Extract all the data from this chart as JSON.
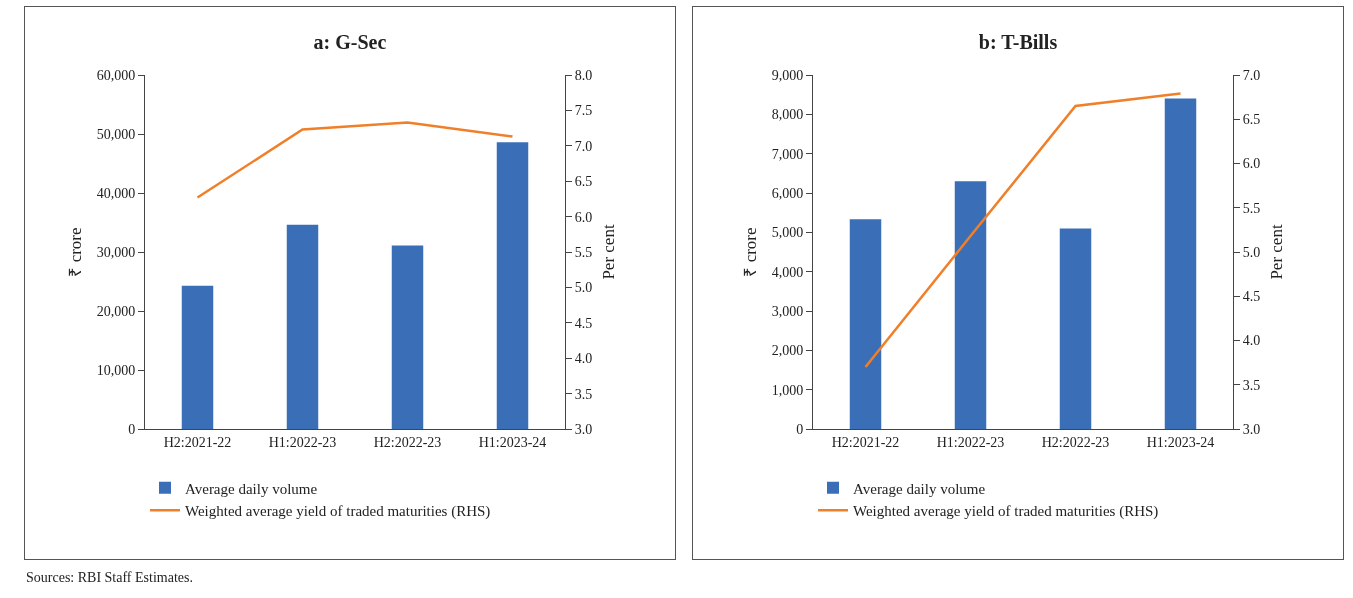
{
  "chart_data": [
    {
      "type": "bar",
      "title": "a: G-Sec",
      "ylabel": "₹ crore",
      "y2label": "Per cent",
      "categories": [
        "H2:2021-22",
        "H1:2022-23",
        "H2:2022-23",
        "H1:2023-24"
      ],
      "series": [
        {
          "name": "Average daily volume",
          "color": "#3a6fb7",
          "values": [
            24300,
            34600,
            31100,
            48600
          ]
        },
        {
          "name": "Weighted average yield of traded maturities (RHS)",
          "type": "line",
          "axis": "y2",
          "color": "#f07f2a",
          "values": [
            6.27,
            7.23,
            7.33,
            7.13
          ]
        }
      ],
      "ylim": [
        0,
        60000
      ],
      "yticks": [
        {
          "value": 0,
          "label": "0"
        },
        {
          "value": 10000,
          "label": "10,000"
        },
        {
          "value": 20000,
          "label": "20,000"
        },
        {
          "value": 30000,
          "label": "30,000"
        },
        {
          "value": 40000,
          "label": "40,000"
        },
        {
          "value": 50000,
          "label": "50,000"
        },
        {
          "value": 60000,
          "label": "60,000"
        }
      ],
      "y2lim": [
        3,
        8
      ],
      "y2ticks": [
        {
          "value": 3,
          "label": "3.0"
        },
        3.5,
        {
          "value": 4,
          "label": "4.0"
        },
        4.5,
        {
          "value": 5,
          "label": "5.0"
        },
        5.5,
        {
          "value": 6,
          "label": "6.0"
        },
        6.5,
        {
          "value": 7,
          "label": "7.0"
        },
        7.5,
        {
          "value": 8,
          "label": "8.0"
        }
      ],
      "grid": false,
      "legend": "bottom",
      "marker": "none",
      "annotations": [
        "Sources: RBI Staff Estimates."
      ]
    },
    {
      "type": "bar",
      "title": "b: T-Bills",
      "ylabel": "₹ crore",
      "y2label": "Per cent",
      "categories": [
        "H2:2021-22",
        "H1:2022-23",
        "H2:2022-23",
        "H1:2023-24"
      ],
      "series": [
        {
          "name": "Average daily volume",
          "color": "#3a6fb7",
          "values": [
            5330,
            6300,
            5100,
            8400
          ]
        },
        {
          "name": "Weighted average yield of traded maturities (RHS)",
          "type": "line",
          "axis": "y2",
          "color": "#f07f2a",
          "values": [
            3.7,
            5.18,
            6.65,
            6.79
          ]
        }
      ],
      "ylim": [
        0,
        9000
      ],
      "yticks": [
        {
          "value": 0,
          "label": "0"
        },
        {
          "value": 1000,
          "label": "1,000"
        },
        {
          "value": 2000,
          "label": "2,000"
        },
        {
          "value": 3000,
          "label": "3,000"
        },
        {
          "value": 4000,
          "label": "4,000"
        },
        {
          "value": 5000,
          "label": "5,000"
        },
        {
          "value": 6000,
          "label": "6,000"
        },
        {
          "value": 7000,
          "label": "7,000"
        },
        {
          "value": 8000,
          "label": "8,000"
        },
        {
          "value": 9000,
          "label": "9,000"
        }
      ],
      "y2lim": [
        3,
        7
      ],
      "y2ticks": [
        {
          "value": 3,
          "label": "3.0"
        },
        3.5,
        {
          "value": 4,
          "label": "4.0"
        },
        4.5,
        {
          "value": 5,
          "label": "5.0"
        },
        5.5,
        {
          "value": 6,
          "label": "6.0"
        },
        6.5,
        {
          "value": 7,
          "label": "7.0"
        }
      ],
      "grid": false,
      "legend": "bottom",
      "marker": "none"
    }
  ]
}
